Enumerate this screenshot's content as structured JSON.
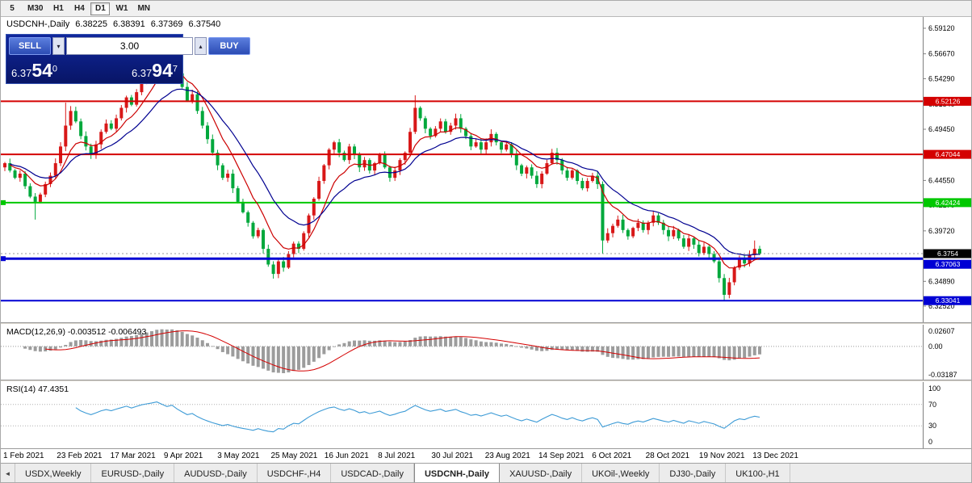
{
  "toolbar": {
    "timeframes": [
      {
        "label": "5",
        "active": false
      },
      {
        "label": "M30",
        "active": false
      },
      {
        "label": "H1",
        "active": false
      },
      {
        "label": "H4",
        "active": false
      },
      {
        "label": "D1",
        "active": true
      },
      {
        "label": "W1",
        "active": false
      },
      {
        "label": "MN",
        "active": false
      }
    ]
  },
  "chart": {
    "info": {
      "symbol_period": "USDCNH-,Daily",
      "open": "6.38225",
      "high": "6.38391",
      "low": "6.37369",
      "close": "6.37540"
    },
    "trade_panel": {
      "sell_label": "SELL",
      "buy_label": "BUY",
      "lot": "3.00",
      "down_arrow": "▾",
      "up_arrow": "▴",
      "sell_price": {
        "prefix": "6.37",
        "big": "54",
        "sup": "0"
      },
      "buy_price": {
        "prefix": "6.37",
        "big": "94",
        "sup": "7"
      }
    },
    "price_axis": {
      "labels": [
        "6.59120",
        "6.56670",
        "6.54290",
        "6.51840",
        "6.49450",
        "6.47000",
        "6.44550",
        "6.42170",
        "6.39720",
        "6.37340",
        "6.34890",
        "6.32520"
      ],
      "ylim": [
        6.3097,
        6.602
      ]
    },
    "hlines": [
      {
        "value": 6.52126,
        "label": "6.52126",
        "color": "#d40000",
        "width": 2,
        "marker": false,
        "nudge": 0
      },
      {
        "value": 6.47044,
        "label": "6.47044",
        "color": "#d40000",
        "width": 2,
        "marker": false,
        "nudge": 0
      },
      {
        "value": 6.42424,
        "label": "6.42424",
        "color": "#00c800",
        "width": 2,
        "marker": true,
        "nudge": 0
      },
      {
        "value": 6.37063,
        "label": "6.37063",
        "color": "#0000d4",
        "width": 3,
        "marker": true,
        "nudge": 7
      },
      {
        "value": 6.33041,
        "label": "6.33041",
        "color": "#0000d4",
        "width": 2,
        "marker": false,
        "nudge": 0
      }
    ],
    "current_price": {
      "label": "6.3754",
      "value": 6.3754,
      "bg": "#000000"
    },
    "candle_colors": {
      "bull": "#d81818",
      "bear": "#00a83c"
    }
  },
  "chart_data": {
    "type": "candlestick",
    "symbol": "USDCNH",
    "timeframe": "Daily",
    "x_range": [
      "1 Feb 2021",
      "13 Dec 2021"
    ],
    "ylim": [
      6.3097,
      6.602
    ],
    "first_open": 6.458,
    "closes": [
      6.462,
      6.455,
      6.448,
      6.452,
      6.44,
      6.43,
      6.425,
      6.432,
      6.442,
      6.45,
      6.462,
      6.478,
      6.498,
      6.512,
      6.502,
      6.488,
      6.478,
      6.47,
      6.48,
      6.492,
      6.5,
      6.495,
      6.505,
      6.515,
      6.525,
      6.518,
      6.53,
      6.542,
      6.55,
      6.558,
      6.568,
      6.56,
      6.552,
      6.562,
      6.548,
      6.535,
      6.522,
      6.528,
      6.512,
      6.498,
      6.485,
      6.472,
      6.46,
      6.448,
      6.452,
      6.438,
      6.425,
      6.415,
      6.405,
      6.392,
      6.398,
      6.38,
      6.365,
      6.356,
      6.368,
      6.362,
      6.375,
      6.385,
      6.38,
      6.395,
      6.412,
      6.428,
      6.445,
      6.46,
      6.475,
      6.482,
      6.472,
      6.465,
      6.478,
      6.47,
      6.458,
      6.465,
      6.455,
      6.462,
      6.47,
      6.458,
      6.448,
      6.455,
      6.465,
      6.472,
      6.492,
      6.515,
      6.505,
      6.495,
      6.488,
      6.495,
      6.502,
      6.492,
      6.498,
      6.505,
      6.495,
      6.488,
      6.478,
      6.482,
      6.475,
      6.482,
      6.49,
      6.482,
      6.475,
      6.48,
      6.47,
      6.46,
      6.452,
      6.458,
      6.45,
      6.442,
      6.452,
      6.462,
      6.472,
      6.465,
      6.455,
      6.448,
      6.455,
      6.445,
      6.438,
      6.445,
      6.45,
      6.442,
      6.388,
      6.395,
      6.402,
      6.408,
      6.398,
      6.392,
      6.4,
      6.405,
      6.398,
      6.405,
      6.412,
      6.405,
      6.398,
      6.392,
      6.398,
      6.39,
      6.382,
      6.39,
      6.384,
      6.376,
      6.382,
      6.375,
      6.368,
      6.352,
      6.336,
      6.348,
      6.362,
      6.37,
      6.366,
      6.374,
      6.38,
      6.3754
    ],
    "extremes": [
      {
        "i": 6,
        "l": 6.408
      },
      {
        "i": 12,
        "h": 6.52
      },
      {
        "i": 30,
        "h": 6.5755
      },
      {
        "i": 33,
        "h": 6.5715
      },
      {
        "i": 53,
        "l": 6.3515
      },
      {
        "i": 81,
        "h": 6.527
      },
      {
        "i": 118,
        "l": 6.3755
      },
      {
        "i": 142,
        "l": 6.3304
      },
      {
        "i": 148,
        "h": 6.388
      }
    ],
    "overlays": [
      {
        "name": "EMA-fast",
        "period": 8,
        "color": "#cc0000"
      },
      {
        "name": "EMA-slow",
        "period": 17,
        "color": "#000090"
      }
    ],
    "indicators": [
      {
        "name": "MACD",
        "params": [
          12,
          26,
          9
        ],
        "current_main": -0.003512,
        "current_signal": -0.006493
      },
      {
        "name": "RSI",
        "params": [
          14
        ],
        "current": 47.4351
      }
    ]
  },
  "macd": {
    "label": "MACD(12,26,9) -0.003512 -0.006493",
    "axis_top": "0.02607",
    "axis_zero": "0.00",
    "axis_bottom": "-0.03187",
    "bar_color": "#9c9c9c",
    "signal_color": "#d40000"
  },
  "rsi": {
    "label": "RSI(14) 47.4351",
    "axis": [
      100,
      70,
      30,
      0
    ],
    "levels": [
      70,
      30
    ],
    "line_color": "#3d9bd6"
  },
  "date_axis": {
    "labels": [
      "1 Feb 2021",
      "23 Feb 2021",
      "17 Mar 2021",
      "9 Apr 2021",
      "3 May 2021",
      "25 May 2021",
      "16 Jun 2021",
      "8 Jul 2021",
      "30 Jul 2021",
      "23 Aug 2021",
      "14 Sep 2021",
      "6 Oct 2021",
      "28 Oct 2021",
      "19 Nov 2021",
      "13 Dec 2021"
    ]
  },
  "tabs": {
    "scroll_left": "◄",
    "items": [
      {
        "label": "USDX,Weekly",
        "active": false
      },
      {
        "label": "EURUSD-,Daily",
        "active": false
      },
      {
        "label": "AUDUSD-,Daily",
        "active": false
      },
      {
        "label": "USDCHF-,H4",
        "active": false
      },
      {
        "label": "USDCAD-,Daily",
        "active": false
      },
      {
        "label": "USDCNH-,Daily",
        "active": true
      },
      {
        "label": "XAUUSD-,Daily",
        "active": false
      },
      {
        "label": "UKOil-,Weekly",
        "active": false
      },
      {
        "label": "DJ30-,Daily",
        "active": false
      },
      {
        "label": "UK100-,H1",
        "active": false
      }
    ]
  }
}
